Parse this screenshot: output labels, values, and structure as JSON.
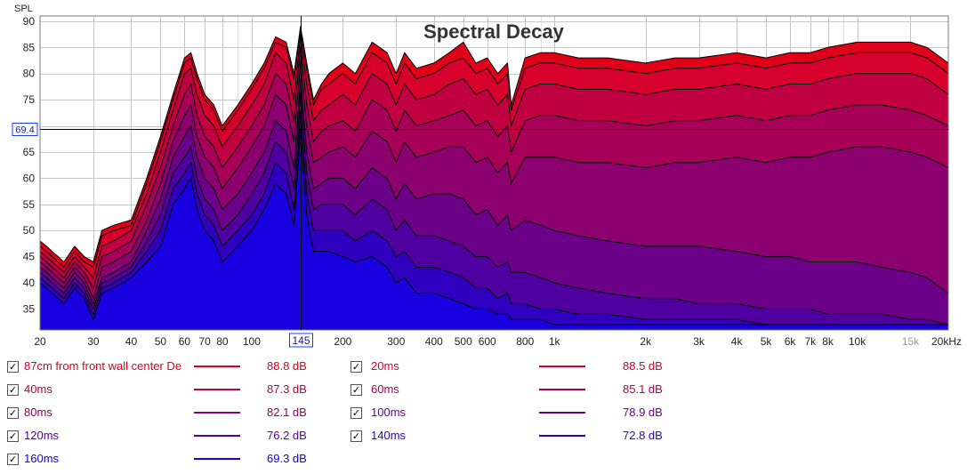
{
  "chart_data": {
    "type": "area",
    "title": "Spectral Decay",
    "ylabel": "SPL",
    "xlabel": "",
    "xscale": "log",
    "xlim": [
      20,
      20000
    ],
    "ylim": [
      31,
      91
    ],
    "grid": true,
    "x_ticks": [
      {
        "value": 20,
        "label": "20"
      },
      {
        "value": 30,
        "label": "30"
      },
      {
        "value": 40,
        "label": "40"
      },
      {
        "value": 50,
        "label": "50"
      },
      {
        "value": 60,
        "label": "60"
      },
      {
        "value": 70,
        "label": "70"
      },
      {
        "value": 80,
        "label": "80"
      },
      {
        "value": 100,
        "label": "100"
      },
      {
        "value": 200,
        "label": "200"
      },
      {
        "value": 300,
        "label": "300"
      },
      {
        "value": 400,
        "label": "400"
      },
      {
        "value": 500,
        "label": "500"
      },
      {
        "value": 600,
        "label": "600"
      },
      {
        "value": 800,
        "label": "800"
      },
      {
        "value": 1000,
        "label": "1k"
      },
      {
        "value": 2000,
        "label": "2k"
      },
      {
        "value": 3000,
        "label": "3k"
      },
      {
        "value": 4000,
        "label": "4k"
      },
      {
        "value": 5000,
        "label": "5k"
      },
      {
        "value": 6000,
        "label": "6k"
      },
      {
        "value": 7000,
        "label": "7k"
      },
      {
        "value": 8000,
        "label": "8k"
      },
      {
        "value": 10000,
        "label": "10k"
      },
      {
        "value": 15000,
        "label": "15k"
      },
      {
        "value": 20000,
        "label": "20kHz"
      }
    ],
    "y_ticks": [
      35,
      40,
      45,
      50,
      55,
      60,
      65,
      70,
      75,
      80,
      85,
      90
    ],
    "cursor": {
      "x": 145,
      "x_label": "145",
      "y": 69.4,
      "y_label": "69.4"
    },
    "freqs": [
      20,
      21,
      24,
      26,
      28,
      30,
      32,
      35,
      40,
      45,
      50,
      55,
      60,
      63,
      66,
      70,
      75,
      80,
      90,
      100,
      110,
      120,
      130,
      138,
      145,
      152,
      160,
      170,
      180,
      200,
      220,
      250,
      280,
      300,
      320,
      350,
      400,
      450,
      500,
      550,
      600,
      650,
      700,
      720,
      800,
      900,
      1000,
      1200,
      1500,
      2000,
      2500,
      3000,
      4000,
      5000,
      6000,
      7000,
      8000,
      10000,
      12000,
      15000,
      17000,
      20000
    ],
    "series": [
      {
        "name": "87cm from front wall center De",
        "value_label": "88.8 dB",
        "color": "#e00018",
        "values": [
          48,
          47,
          44,
          47,
          45,
          44,
          50,
          51,
          52,
          60,
          68,
          76,
          83,
          84,
          80,
          76,
          74,
          70,
          74,
          78,
          82,
          87,
          86,
          80,
          89,
          82,
          75,
          78,
          80,
          82,
          80,
          86,
          84,
          80,
          84,
          81,
          82,
          84,
          86,
          82,
          83,
          80,
          82,
          74,
          83,
          84,
          84,
          83,
          83,
          82,
          83,
          83,
          84,
          83,
          84,
          84,
          85,
          86,
          86,
          86,
          85,
          82
        ]
      },
      {
        "name": "20ms",
        "value_label": "88.5 dB",
        "color": "#d8002c",
        "values": [
          47,
          46,
          43,
          46,
          44,
          43,
          49,
          50,
          51,
          59,
          67,
          75,
          82,
          83,
          79,
          75,
          73,
          69,
          73,
          77,
          81,
          86,
          85,
          79,
          88.5,
          81,
          74,
          77,
          78,
          80,
          78,
          84,
          82,
          78,
          82,
          79,
          80,
          82,
          83,
          80,
          81,
          78,
          80,
          73,
          81,
          82,
          82,
          81,
          81,
          80,
          81,
          81,
          82,
          81,
          82,
          82,
          83,
          84,
          84,
          84,
          83,
          80
        ]
      },
      {
        "name": "40ms",
        "value_label": "87.3 dB",
        "color": "#c00040",
        "values": [
          46,
          45,
          42,
          45,
          43,
          41,
          47,
          48,
          50,
          57,
          65,
          73,
          80,
          81,
          76,
          72,
          70,
          66,
          70,
          74,
          78,
          84,
          82,
          75,
          87.3,
          78,
          71,
          73,
          74,
          76,
          74,
          80,
          78,
          74,
          78,
          75,
          76,
          78,
          79,
          76,
          77,
          74,
          76,
          70,
          77,
          78,
          78,
          77,
          77,
          76,
          77,
          77,
          78,
          77,
          78,
          78,
          79,
          80,
          80,
          80,
          79,
          76
        ]
      },
      {
        "name": "60ms",
        "value_label": "85.1 dB",
        "color": "#a80058",
        "values": [
          45,
          44,
          41,
          44,
          42,
          39,
          45,
          46,
          48,
          55,
          62,
          70,
          76,
          78,
          72,
          68,
          66,
          62,
          66,
          70,
          74,
          80,
          78,
          71,
          85.1,
          74,
          67,
          69,
          70,
          71,
          69,
          75,
          73,
          69,
          73,
          70,
          71,
          72,
          73,
          70,
          71,
          68,
          70,
          65,
          71,
          72,
          72,
          71,
          71,
          70,
          71,
          71,
          72,
          71,
          72,
          72,
          73,
          74,
          74,
          73,
          72,
          70
        ]
      },
      {
        "name": "80ms",
        "value_label": "82.1 dB",
        "color": "#8c0070",
        "values": [
          44,
          43,
          40,
          43,
          41,
          37,
          43,
          44,
          46,
          52,
          59,
          67,
          72,
          74,
          68,
          64,
          62,
          58,
          62,
          66,
          70,
          76,
          74,
          67,
          82.1,
          70,
          63,
          64,
          65,
          66,
          64,
          69,
          67,
          63,
          67,
          64,
          65,
          66,
          66,
          63,
          64,
          61,
          63,
          59,
          64,
          64,
          64,
          63,
          63,
          62,
          63,
          63,
          64,
          63,
          64,
          64,
          65,
          66,
          66,
          65,
          64,
          62
        ]
      },
      {
        "name": "100ms",
        "value_label": "78.9 dB",
        "color": "#6c0088",
        "values": [
          43,
          42,
          39,
          42,
          40,
          36,
          41,
          42,
          44,
          50,
          56,
          64,
          68,
          70,
          64,
          60,
          58,
          54,
          57,
          61,
          65,
          71,
          69,
          62,
          78.9,
          65,
          58,
          59,
          60,
          60,
          58,
          62,
          60,
          56,
          59,
          56,
          57,
          57,
          56,
          53,
          54,
          51,
          53,
          50,
          52,
          51,
          50,
          49,
          48,
          47,
          47,
          47,
          46,
          45,
          45,
          44,
          44,
          44,
          43,
          42,
          41,
          38
        ]
      },
      {
        "name": "120ms",
        "value_label": "76.2 dB",
        "color": "#5000a0",
        "values": [
          42,
          41,
          38,
          41,
          39,
          35,
          40,
          41,
          43,
          48,
          53,
          61,
          64,
          66,
          60,
          56,
          54,
          50,
          53,
          57,
          61,
          67,
          65,
          58,
          76.2,
          61,
          54,
          55,
          55,
          55,
          53,
          56,
          54,
          50,
          52,
          49,
          49,
          48,
          47,
          45,
          45,
          43,
          44,
          42,
          42,
          41,
          40,
          39,
          38,
          37,
          37,
          36,
          36,
          35,
          35,
          35,
          34,
          34,
          34,
          33,
          33,
          32
        ]
      },
      {
        "name": "140ms",
        "value_label": "72.8 dB",
        "color": "#3000c0",
        "values": [
          41,
          40,
          37,
          40,
          38,
          34,
          39,
          40,
          42,
          46,
          50,
          58,
          61,
          63,
          57,
          53,
          51,
          47,
          50,
          53,
          57,
          63,
          61,
          54,
          72.8,
          57,
          50,
          50,
          50,
          50,
          48,
          50,
          48,
          45,
          46,
          43,
          43,
          42,
          41,
          39,
          39,
          37,
          38,
          36,
          36,
          35,
          35,
          34,
          34,
          33,
          33,
          33,
          33,
          32,
          32,
          32,
          32,
          32,
          32,
          32,
          32,
          32
        ]
      },
      {
        "name": "160ms",
        "value_label": "69.3 dB",
        "color": "#1800e0",
        "values": [
          40,
          39,
          36,
          39,
          37,
          33,
          38,
          39,
          41,
          44,
          47,
          55,
          58,
          60,
          54,
          50,
          48,
          44,
          47,
          50,
          54,
          59,
          57,
          51,
          69.3,
          53,
          46,
          46,
          46,
          45,
          44,
          45,
          43,
          40,
          41,
          38,
          38,
          37,
          36,
          35,
          35,
          34,
          34,
          33,
          33,
          33,
          32,
          32,
          32,
          32,
          32,
          32,
          32,
          32,
          32,
          32,
          32,
          32,
          32,
          32,
          32,
          32
        ]
      }
    ]
  },
  "legend": {
    "checked_symbol": "✓"
  }
}
